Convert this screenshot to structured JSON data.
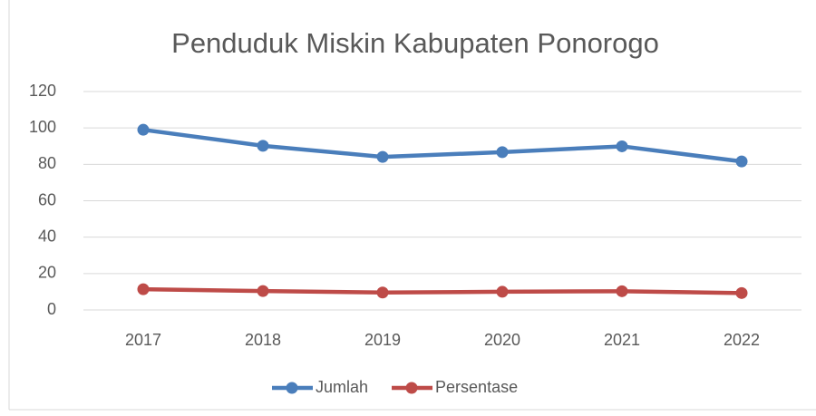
{
  "chart_data": {
    "type": "line",
    "title": "Penduduk Miskin Kabupaten Ponorogo",
    "categories": [
      "2017",
      "2018",
      "2019",
      "2020",
      "2021",
      "2022"
    ],
    "series": [
      {
        "name": "Jumlah",
        "color": "#4a7ebb",
        "values": [
          99,
          90.2,
          84.1,
          86.7,
          89.9,
          81.6
        ]
      },
      {
        "name": "Persentase",
        "color": "#be4b48",
        "values": [
          11.4,
          10.4,
          9.6,
          10,
          10.3,
          9.3
        ]
      }
    ],
    "ylim": [
      0,
      120
    ],
    "yticks": [
      0,
      20,
      40,
      60,
      80,
      100,
      120
    ],
    "grid": true,
    "legend": "bottom"
  }
}
